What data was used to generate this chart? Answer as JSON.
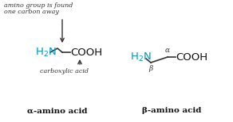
{
  "bg_color": "#ffffff",
  "annotation_color": "#333333",
  "h2n_color": "#0099bb",
  "bond_color": "#333333",
  "label_color": "#111111",
  "ann_line1": "amino group is found",
  "ann_line2": "one carbon away",
  "carboxylic_label": "carboxylic acid",
  "alpha_label": "α-amino acid",
  "beta_label": "β-amino acid",
  "figsize": [
    2.92,
    1.54
  ],
  "dpi": 100
}
